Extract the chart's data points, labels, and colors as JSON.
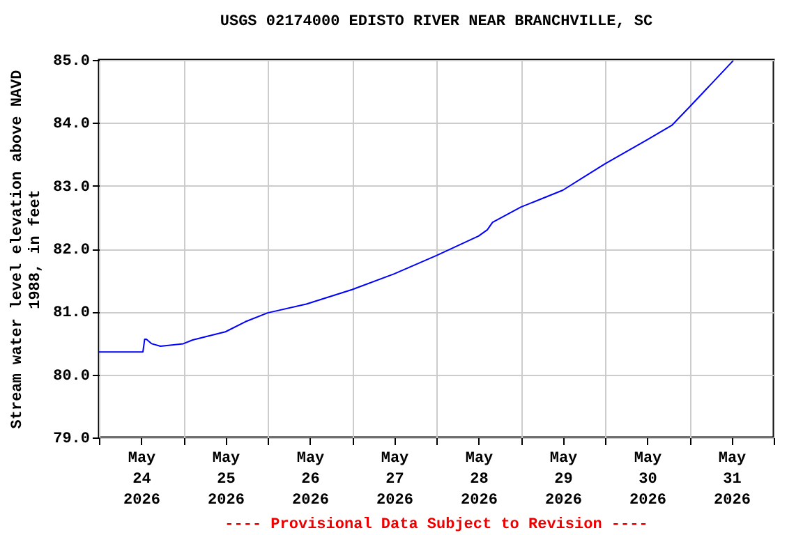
{
  "chart_data": {
    "type": "line",
    "title": "USGS 02174000 EDISTO RIVER NEAR BRANCHVILLE, SC",
    "ylabel": "Stream water level elevation above NAVD 1988, in feet",
    "annotations": [
      "---- Provisional Data Subject to Revision ----"
    ],
    "x": [
      "2026-05-24T00:00",
      "2026-05-24T12:30",
      "2026-05-24T13:00",
      "2026-05-24T13:30",
      "2026-05-24T15:00",
      "2026-05-24T17:30",
      "2026-05-25T00:00",
      "2026-05-25T02:40",
      "2026-05-25T12:00",
      "2026-05-25T17:40",
      "2026-05-26T00:00",
      "2026-05-26T11:00",
      "2026-05-27T00:00",
      "2026-05-27T12:00",
      "2026-05-28T00:00",
      "2026-05-28T12:00",
      "2026-05-28T14:30",
      "2026-05-28T16:00",
      "2026-05-29T00:00",
      "2026-05-29T12:00",
      "2026-05-30T00:00",
      "2026-05-30T12:00",
      "2026-05-30T19:00",
      "2026-05-31T00:00",
      "2026-05-31T12:30"
    ],
    "series": [
      {
        "color": "#0000ff",
        "values": [
          80.36,
          80.36,
          80.56,
          80.56,
          80.49,
          80.45,
          80.49,
          80.55,
          80.68,
          80.84,
          80.98,
          81.12,
          81.35,
          81.6,
          81.89,
          82.2,
          82.3,
          82.42,
          82.66,
          82.93,
          83.35,
          83.73,
          83.96,
          84.25,
          84.99
        ]
      }
    ],
    "xlim": [
      "2026-05-24T00:00",
      "2026-06-01T00:00"
    ],
    "xticks": [
      {
        "value": "2026-05-24T00:00",
        "label": null
      },
      {
        "value": "2026-05-24T12:00",
        "label": "May 24 2026"
      },
      {
        "value": "2026-05-25T00:00",
        "label": null
      },
      {
        "value": "2026-05-25T12:00",
        "label": "May 25 2026"
      },
      {
        "value": "2026-05-26T00:00",
        "label": null
      },
      {
        "value": "2026-05-26T12:00",
        "label": "May 26 2026"
      },
      {
        "value": "2026-05-27T00:00",
        "label": null
      },
      {
        "value": "2026-05-27T12:00",
        "label": "May 27 2026"
      },
      {
        "value": "2026-05-28T00:00",
        "label": null
      },
      {
        "value": "2026-05-28T12:00",
        "label": "May 28 2026"
      },
      {
        "value": "2026-05-29T00:00",
        "label": null
      },
      {
        "value": "2026-05-29T12:00",
        "label": "May 29 2026"
      },
      {
        "value": "2026-05-30T00:00",
        "label": null
      },
      {
        "value": "2026-05-30T12:00",
        "label": "May 30 2026"
      },
      {
        "value": "2026-05-31T00:00",
        "label": null
      },
      {
        "value": "2026-05-31T12:00",
        "label": "May 31 2026"
      },
      {
        "value": "2026-06-01T00:00",
        "label": null
      }
    ],
    "ylim": [
      79.0,
      85.0
    ],
    "yticks": [
      {
        "value": 79,
        "label": "79.0"
      },
      {
        "value": 80,
        "label": "80.0"
      },
      {
        "value": 81,
        "label": "81.0"
      },
      {
        "value": 82,
        "label": "82.0"
      },
      {
        "value": 83,
        "label": "83.0"
      },
      {
        "value": 84,
        "label": "84.0"
      },
      {
        "value": 85,
        "label": "85.0"
      }
    ],
    "grid": true,
    "marker": "none",
    "line_style": "solid"
  }
}
